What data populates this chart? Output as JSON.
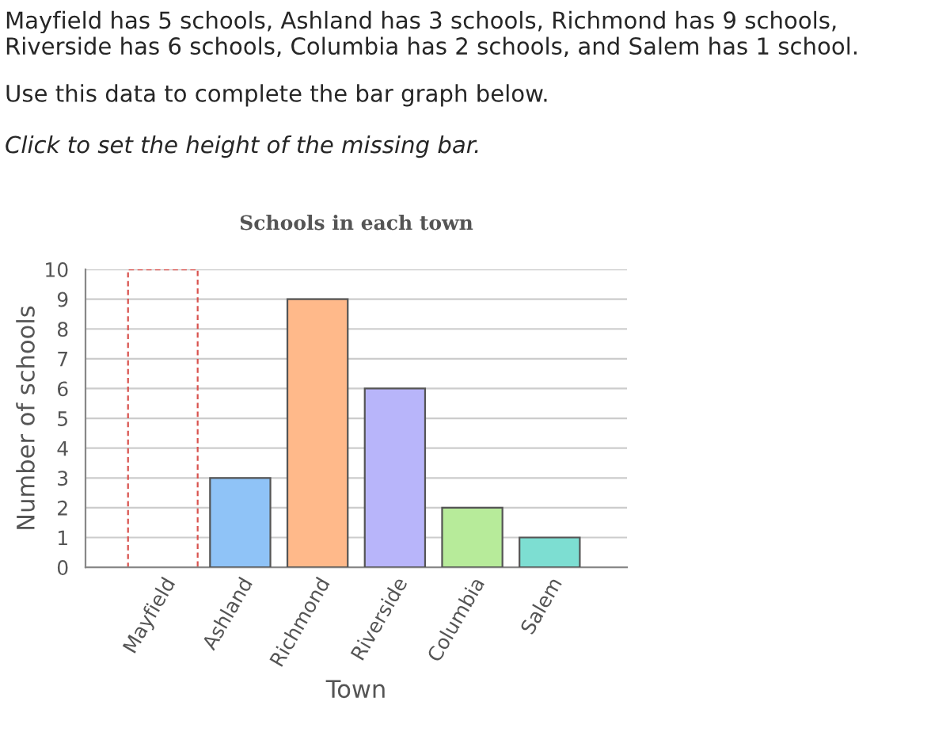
{
  "chart_data": {
    "type": "bar",
    "title": "Schools in each town",
    "xlabel": "Town",
    "ylabel": "Number of schools",
    "annotations": [
      "Mayfield has 5 schools, Ashland has 3 schools, Richmond has 9 schools, Riverside has 6 schools, Columbia has 2 schools, and Salem has 1 school.",
      "Use this data to complete the bar graph below.",
      "Click to set the height of the missing bar."
    ],
    "categories": [
      "Mayfield",
      "Ashland",
      "Richmond",
      "Riverside",
      "Columbia",
      "Salem"
    ],
    "series": [
      {
        "colors": [
          "#ffffff",
          "#8fc3f7",
          "#ffb98a",
          "#b8b5fa",
          "#b7eb9a",
          "#7dded2"
        ],
        "values": [
          null,
          3,
          9,
          6,
          2,
          1
        ]
      },
      {
        "color": "#d9534f",
        "line_style": "dashed",
        "values": [
          10,
          null,
          null,
          null,
          null,
          null
        ]
      }
    ],
    "ylim": [
      0,
      10
    ],
    "yticks": [
      0,
      1,
      2,
      3,
      4,
      5,
      6,
      7,
      8,
      9,
      10
    ],
    "grid": "y"
  }
}
